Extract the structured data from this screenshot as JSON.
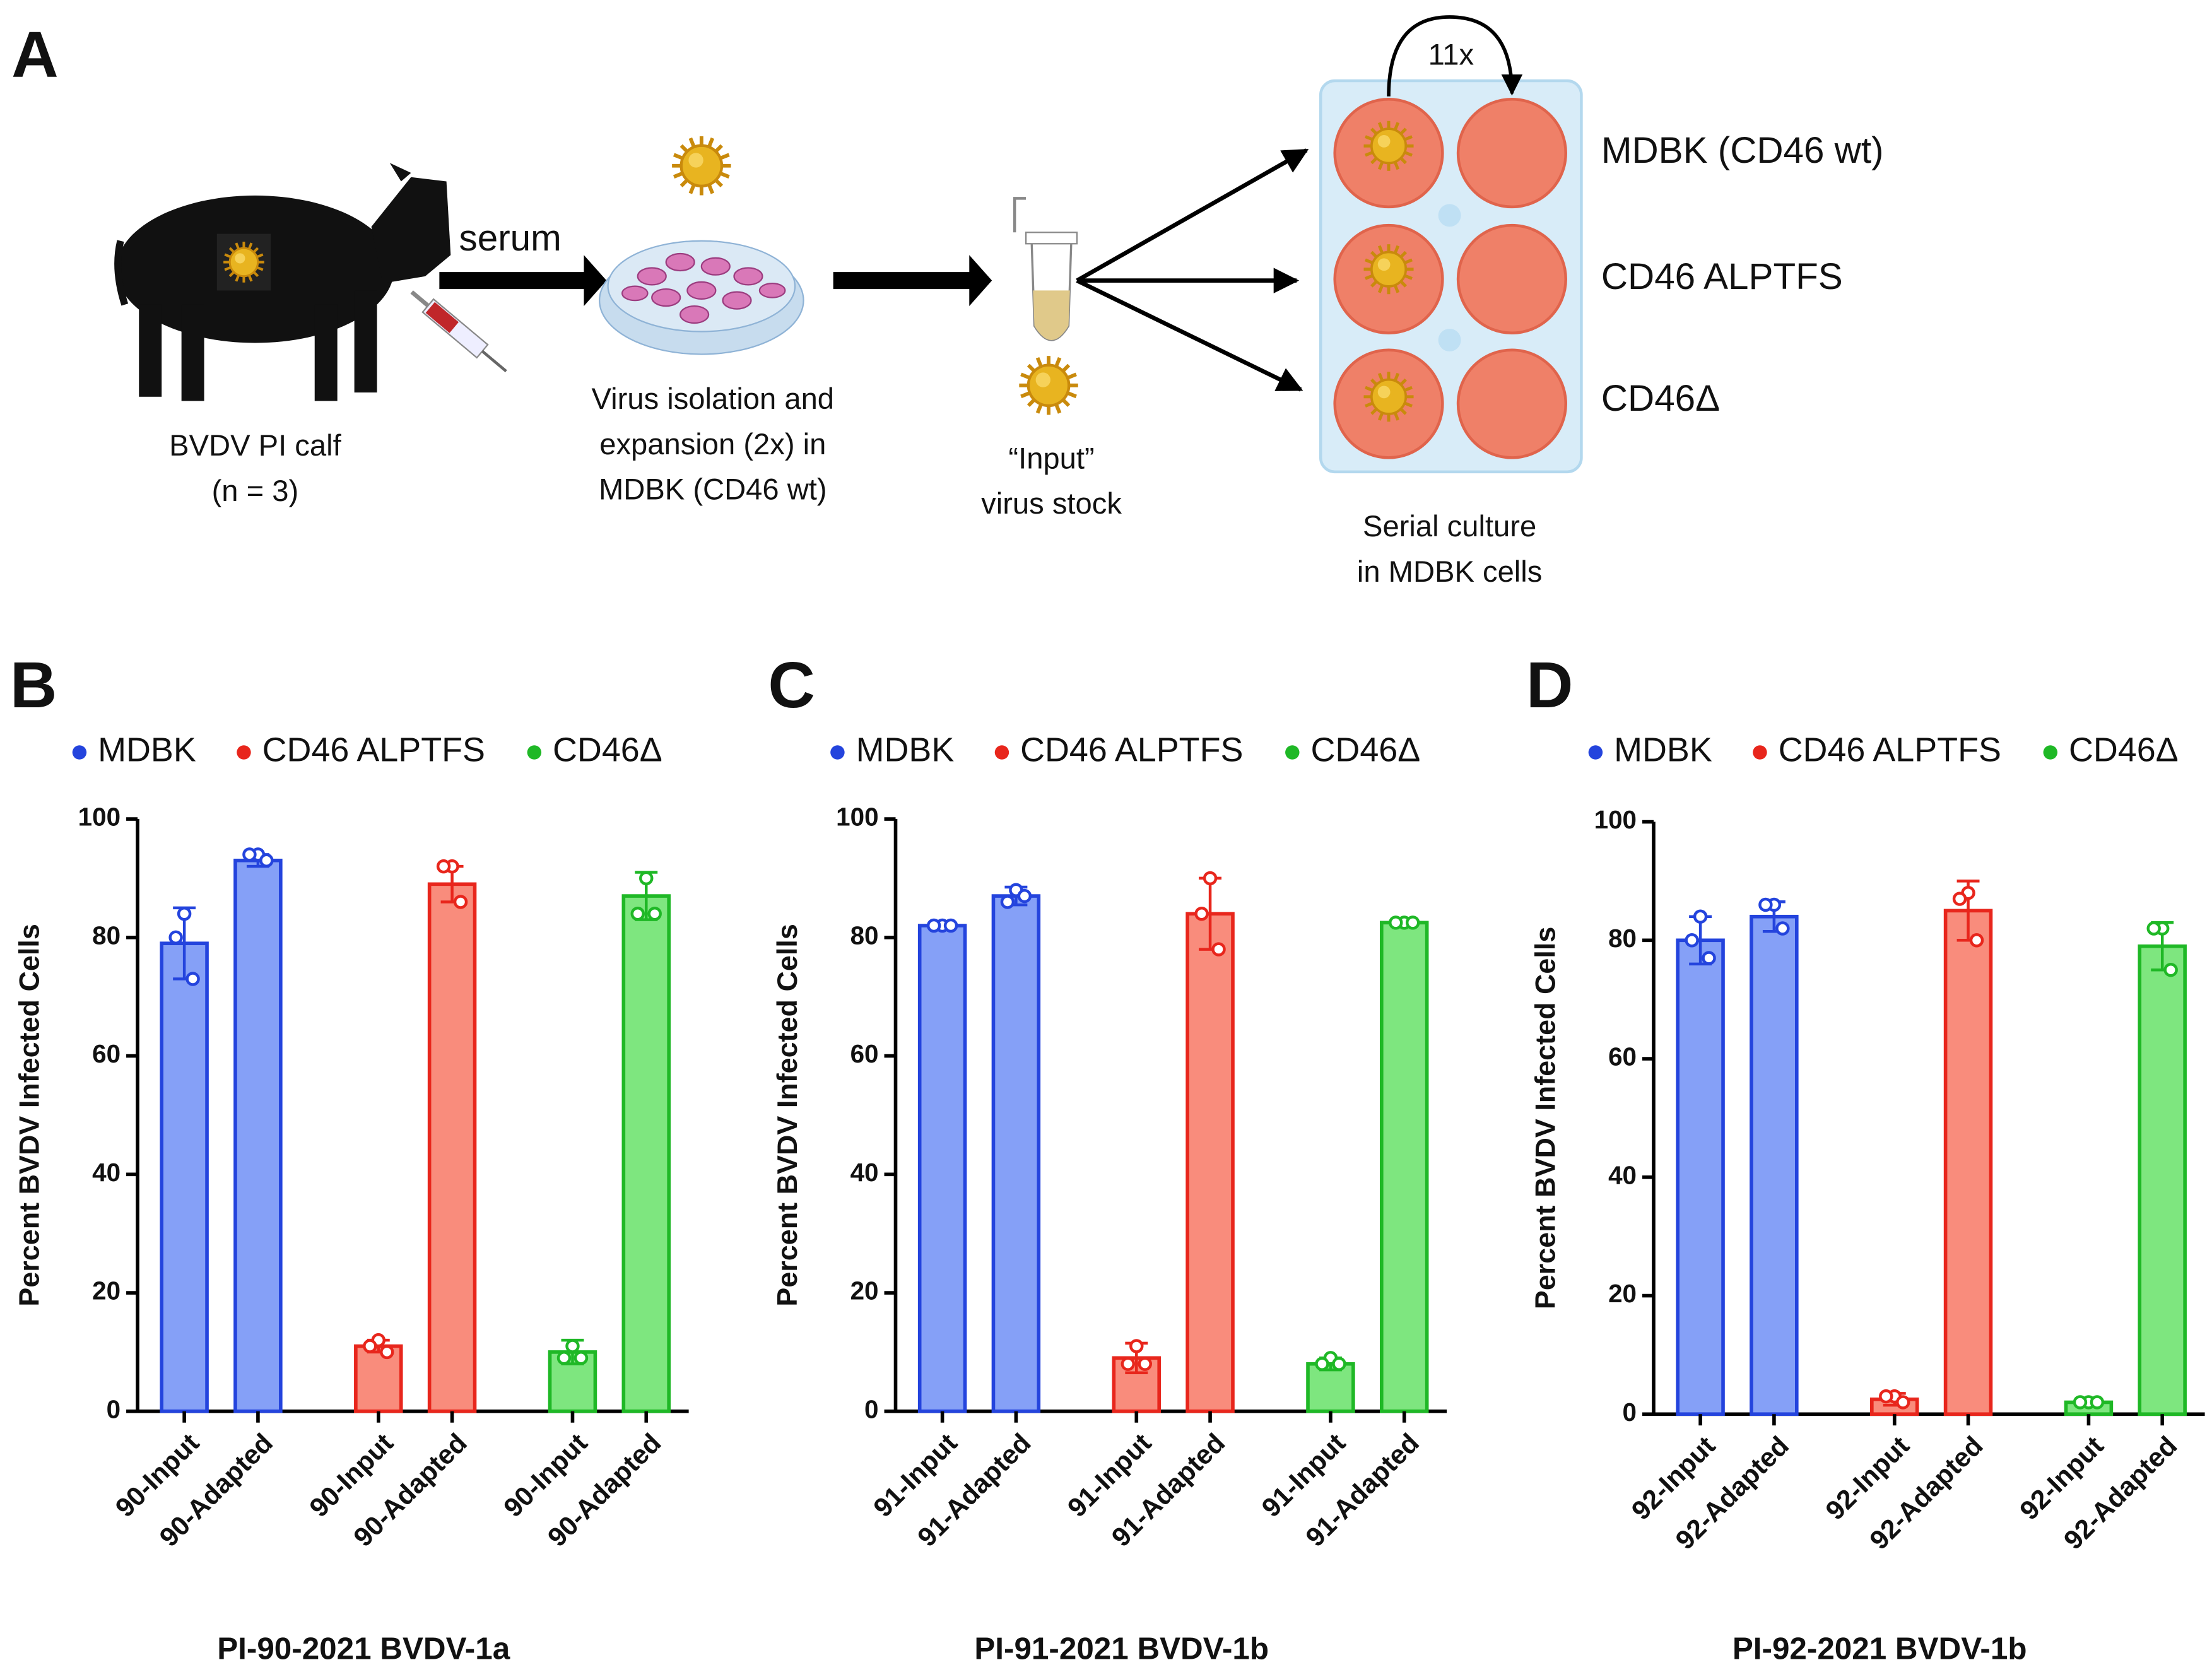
{
  "diagram": {
    "panel": "A",
    "calf": [
      "BVDV PI calf",
      "(n = 3)"
    ],
    "serum": "serum",
    "isolation": [
      "Virus isolation and",
      "expansion (2x) in",
      "MDBK (CD46 wt)"
    ],
    "stock": [
      "“Input”",
      "virus stock"
    ],
    "passages": "11x",
    "cell_lines": [
      "MDBK (CD46 wt)",
      "CD46 ALPTFS",
      "CD46Δ"
    ],
    "culture": [
      "Serial culture",
      "in MDBK cells"
    ]
  },
  "chart_data": [
    {
      "type": "bar",
      "panel": "B",
      "title": "PI-90-2021 BVDV-1a",
      "y_label": "Percent BVDV Infected Cells",
      "ylim": [
        0,
        100
      ],
      "yticks": [
        0,
        20,
        40,
        60,
        80,
        100
      ],
      "series": [
        {
          "name": "MDBK",
          "color": "#2444dd",
          "fill": "#85a0f7",
          "categories": [
            "90-Input",
            "90-Adapted"
          ],
          "values": [
            79,
            93
          ],
          "errors": [
            6,
            1
          ],
          "points": [
            [
              84,
              80,
              73
            ],
            [
              94,
              94,
              93
            ]
          ]
        },
        {
          "name": "CD46 ALPTFS",
          "color": "#e8261c",
          "fill": "#f98c7c",
          "categories": [
            "90-Input",
            "90-Adapted"
          ],
          "values": [
            11,
            89
          ],
          "errors": [
            1,
            3
          ],
          "points": [
            [
              12,
              11,
              10
            ],
            [
              92,
              92,
              86
            ]
          ]
        },
        {
          "name": "CD46Δ",
          "color": "#1fb826",
          "fill": "#7ee67f",
          "categories": [
            "90-Input",
            "90-Adapted"
          ],
          "values": [
            10,
            87
          ],
          "errors": [
            2,
            4
          ],
          "points": [
            [
              11,
              9,
              9
            ],
            [
              90,
              84,
              84
            ]
          ]
        }
      ]
    },
    {
      "type": "bar",
      "panel": "C",
      "title": "PI-91-2021 BVDV-1b",
      "y_label": "Percent BVDV Infected Cells",
      "ylim": [
        0,
        100
      ],
      "yticks": [
        0,
        20,
        40,
        60,
        80,
        100
      ],
      "series": [
        {
          "name": "MDBK",
          "color": "#2444dd",
          "fill": "#85a0f7",
          "categories": [
            "91-Input",
            "91-Adapted"
          ],
          "values": [
            82,
            87
          ],
          "errors": [
            0.5,
            1.5
          ],
          "points": [
            [
              82,
              82,
              82
            ],
            [
              88,
              86,
              87
            ]
          ]
        },
        {
          "name": "CD46 ALPTFS",
          "color": "#e8261c",
          "fill": "#f98c7c",
          "categories": [
            "91-Input",
            "91-Adapted"
          ],
          "values": [
            9,
            84
          ],
          "errors": [
            2.5,
            6
          ],
          "points": [
            [
              11,
              8,
              8
            ],
            [
              90,
              84,
              78
            ]
          ]
        },
        {
          "name": "CD46Δ",
          "color": "#1fb826",
          "fill": "#7ee67f",
          "categories": [
            "91-Input",
            "91-Adapted"
          ],
          "values": [
            8,
            82.5
          ],
          "errors": [
            1,
            0.3
          ],
          "points": [
            [
              9,
              8,
              8
            ],
            [
              82.5,
              82.5,
              82.5
            ]
          ]
        }
      ]
    },
    {
      "type": "bar",
      "panel": "D",
      "title": "PI-92-2021 BVDV-1b",
      "y_label": "Percent BVDV Infected Cells",
      "ylim": [
        0,
        100
      ],
      "yticks": [
        0,
        20,
        40,
        60,
        80,
        100
      ],
      "series": [
        {
          "name": "MDBK",
          "color": "#2444dd",
          "fill": "#85a0f7",
          "categories": [
            "92-Input",
            "92-Adapted"
          ],
          "values": [
            80,
            84
          ],
          "errors": [
            4,
            2.5
          ],
          "points": [
            [
              84,
              80,
              77
            ],
            [
              86,
              86,
              82
            ]
          ]
        },
        {
          "name": "CD46 ALPTFS",
          "color": "#e8261c",
          "fill": "#f98c7c",
          "categories": [
            "92-Input",
            "92-Adapted"
          ],
          "values": [
            2.5,
            85
          ],
          "errors": [
            1,
            5
          ],
          "points": [
            [
              3,
              3,
              2
            ],
            [
              88,
              87,
              80
            ]
          ]
        },
        {
          "name": "CD46Δ",
          "color": "#1fb826",
          "fill": "#7ee67f",
          "categories": [
            "92-Input",
            "92-Adapted"
          ],
          "values": [
            2,
            79
          ],
          "errors": [
            0.5,
            4
          ],
          "points": [
            [
              2,
              2,
              2
            ],
            [
              82,
              82,
              75
            ]
          ]
        }
      ]
    }
  ]
}
